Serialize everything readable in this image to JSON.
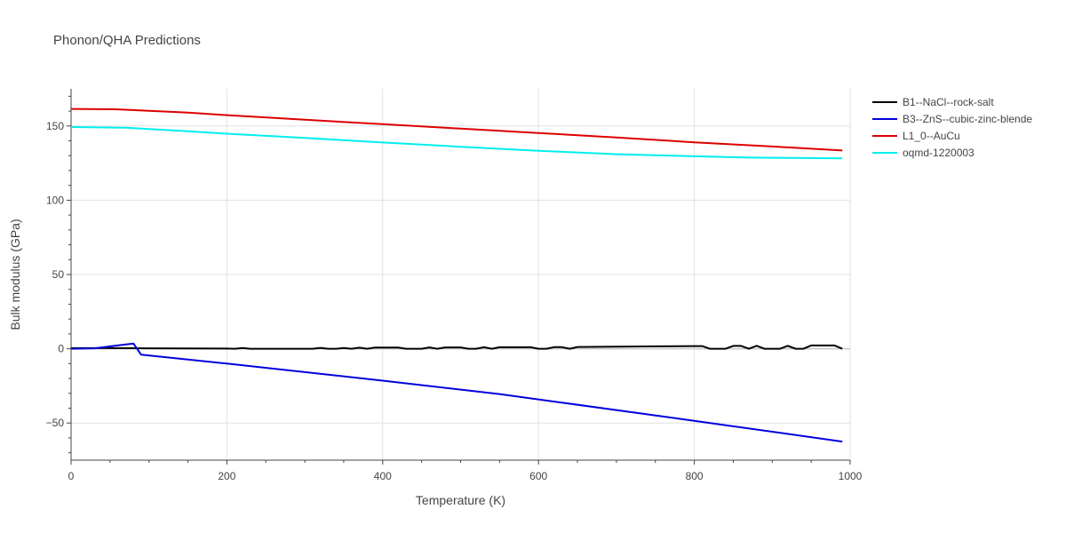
{
  "chart_data": {
    "type": "line",
    "title": "Phonon/QHA Predictions",
    "xlabel": "Temperature (K)",
    "ylabel": "Bulk modulus (GPa)",
    "xlim": [
      0,
      1000
    ],
    "ylim": [
      -75,
      175
    ],
    "xticks": [
      0,
      200,
      400,
      600,
      800,
      1000
    ],
    "xtick_labels": [
      "0",
      "200",
      "400",
      "600",
      "800",
      "1000"
    ],
    "yticks": [
      -50,
      0,
      50,
      100,
      150
    ],
    "ytick_labels": [
      "−50",
      "0",
      "50",
      "100",
      "150"
    ],
    "grid": true,
    "legend_position": "top-right",
    "series": [
      {
        "name": "B1--NaCl--rock-salt",
        "color": "#000000",
        "x": [
          0,
          50,
          100,
          150,
          200,
          210,
          220,
          230,
          300,
          310,
          320,
          330,
          340,
          350,
          360,
          370,
          380,
          390,
          400,
          410,
          420,
          430,
          440,
          450,
          460,
          470,
          480,
          490,
          500,
          510,
          520,
          530,
          540,
          550,
          560,
          570,
          580,
          590,
          600,
          610,
          620,
          630,
          640,
          650,
          700,
          750,
          800,
          810,
          820,
          830,
          840,
          850,
          860,
          870,
          880,
          890,
          900,
          910,
          920,
          930,
          940,
          950,
          960,
          970,
          980,
          990
        ],
        "y": [
          0.4,
          0.4,
          0.3,
          0.2,
          0.1,
          0.0,
          0.5,
          0.0,
          0.0,
          0.0,
          0.6,
          0.0,
          0.0,
          0.5,
          0.0,
          0.7,
          0.0,
          0.8,
          0.8,
          0.8,
          0.8,
          0.0,
          0.0,
          0.0,
          0.9,
          0.0,
          0.9,
          0.9,
          0.9,
          0.0,
          0.0,
          1.0,
          0.0,
          1.0,
          1.0,
          1.0,
          1.0,
          1.0,
          0.0,
          0.0,
          1.1,
          1.1,
          0.0,
          1.2,
          1.4,
          1.6,
          1.8,
          1.8,
          0.0,
          0.0,
          0.0,
          1.9,
          1.9,
          0.0,
          2.0,
          0.0,
          0.0,
          0.0,
          2.0,
          0.0,
          0.0,
          2.2,
          2.2,
          2.2,
          2.2,
          0.0
        ]
      },
      {
        "name": "B3--ZnS--cubic-zinc-blende",
        "color": "#0000dd",
        "x": [
          0,
          30,
          80,
          90,
          200,
          400,
          550,
          800,
          990
        ],
        "y": [
          0.0,
          0.3,
          3.5,
          -4.0,
          -10.0,
          -21.5,
          -30.5,
          -48.5,
          -62.5
        ]
      },
      {
        "name": "L1_0--AuCu",
        "color": "#dd0000",
        "x": [
          0,
          60,
          150,
          200,
          300,
          400,
          500,
          600,
          700,
          800,
          900,
          990
        ],
        "y": [
          161.5,
          161.2,
          159.0,
          157.3,
          154.2,
          151.2,
          148.2,
          145.3,
          142.2,
          139.0,
          136.2,
          133.5
        ]
      },
      {
        "name": "oqmd-1220003",
        "color": "#00eeee",
        "x": [
          0,
          70,
          150,
          200,
          300,
          400,
          500,
          600,
          700,
          800,
          870,
          990
        ],
        "y": [
          149.3,
          148.8,
          146.5,
          144.8,
          141.9,
          138.9,
          136.0,
          133.3,
          131.0,
          129.6,
          128.7,
          128.2
        ]
      }
    ]
  }
}
